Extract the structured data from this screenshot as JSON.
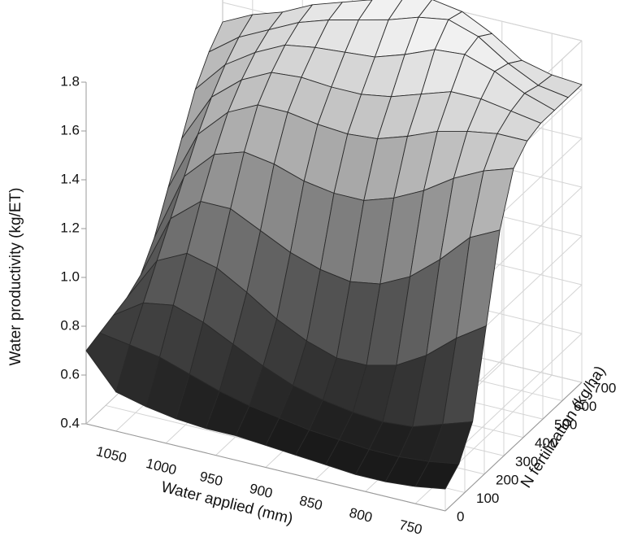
{
  "chart_data": {
    "type": "surface3d",
    "title": "",
    "zlabel": "Water productivity (kg/ET)",
    "xlabel": "Water applied (mm)",
    "ylabel": "N fertilization (kg/ha)",
    "x_ticks": [
      "1050",
      "1000",
      "950",
      "900",
      "850",
      "800",
      "750"
    ],
    "y_ticks": [
      "0",
      "100",
      "200",
      "300",
      "400",
      "500",
      "600",
      "700"
    ],
    "z_ticks": [
      "0.4",
      "0.6",
      "0.8",
      "1.0",
      "1.2",
      "1.4",
      "1.6",
      "1.8"
    ],
    "xlim": [
      1080,
      720
    ],
    "ylim": [
      0,
      700
    ],
    "zlim": [
      0.4,
      1.8
    ],
    "grid": true,
    "colormap": "grayscale (dark = low, light = high)",
    "water_applied_mm": [
      1080,
      1050,
      1020,
      990,
      960,
      930,
      900,
      870,
      840,
      810,
      780,
      750,
      720
    ],
    "n_fertilization_kg_ha": [
      0,
      70,
      140,
      210,
      280,
      350,
      420,
      490,
      560,
      630,
      700
    ],
    "water_productivity_rows_by_n": [
      [
        0.7,
        0.56,
        0.53,
        0.51,
        0.5,
        0.5,
        0.49,
        0.48,
        0.47,
        0.46,
        0.46,
        0.47,
        0.49
      ],
      [
        0.72,
        0.7,
        0.68,
        0.64,
        0.6,
        0.57,
        0.55,
        0.53,
        0.52,
        0.51,
        0.51,
        0.52,
        0.54
      ],
      [
        0.74,
        0.82,
        0.84,
        0.8,
        0.74,
        0.68,
        0.63,
        0.6,
        0.58,
        0.57,
        0.58,
        0.62,
        0.66
      ],
      [
        0.76,
        0.94,
        1.0,
        0.97,
        0.9,
        0.82,
        0.76,
        0.72,
        0.72,
        0.75,
        0.82,
        0.92,
        1.0
      ],
      [
        0.8,
        1.06,
        1.16,
        1.16,
        1.1,
        1.04,
        1.0,
        0.98,
        1.0,
        1.06,
        1.16,
        1.28,
        1.34
      ],
      [
        0.9,
        1.18,
        1.3,
        1.34,
        1.32,
        1.28,
        1.26,
        1.26,
        1.3,
        1.36,
        1.44,
        1.5,
        1.54
      ],
      [
        1.05,
        1.3,
        1.42,
        1.48,
        1.48,
        1.46,
        1.45,
        1.46,
        1.5,
        1.55,
        1.58,
        1.6,
        1.6
      ],
      [
        1.2,
        1.4,
        1.5,
        1.56,
        1.57,
        1.56,
        1.56,
        1.58,
        1.62,
        1.66,
        1.66,
        1.64,
        1.62
      ],
      [
        1.35,
        1.48,
        1.56,
        1.62,
        1.64,
        1.65,
        1.66,
        1.7,
        1.75,
        1.76,
        1.72,
        1.66,
        1.62
      ],
      [
        1.45,
        1.54,
        1.6,
        1.66,
        1.7,
        1.73,
        1.76,
        1.8,
        1.82,
        1.78,
        1.7,
        1.64,
        1.62
      ],
      [
        1.52,
        1.58,
        1.62,
        1.68,
        1.72,
        1.76,
        1.79,
        1.82,
        1.8,
        1.74,
        1.66,
        1.63,
        1.62
      ]
    ]
  }
}
